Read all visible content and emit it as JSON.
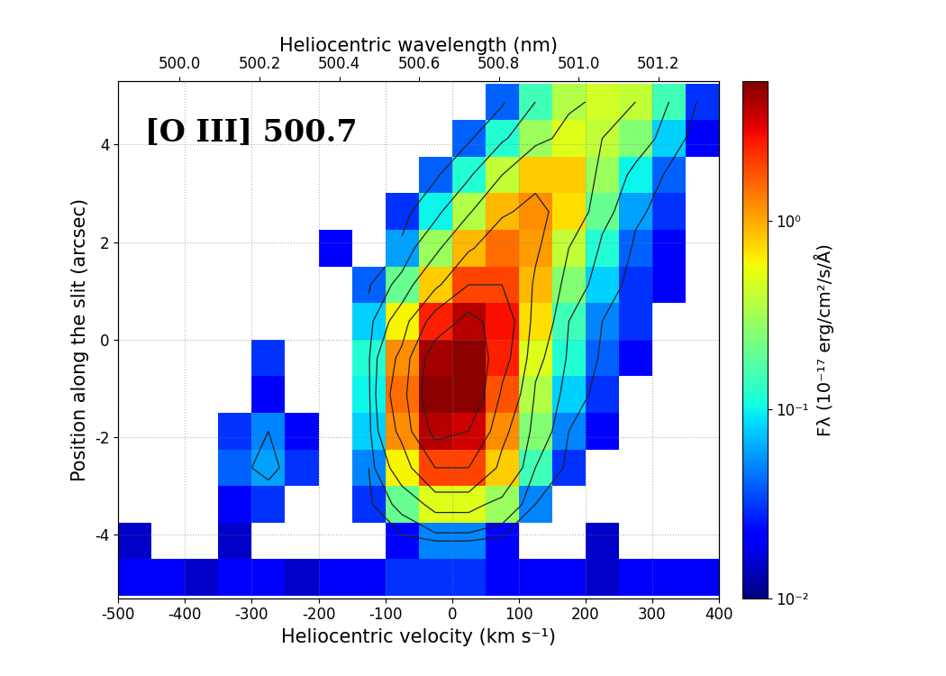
{
  "chart_data": {
    "type": "heatmap",
    "annotation": "[O III] 500.7",
    "x_label": "Heliocentric velocity (km s⁻¹)",
    "y_label": "Position along the slit (arcsec)",
    "x2_label": "Heliocentric wavelength (nm)",
    "colorbar_label": "Fλ (10⁻¹⁷ erg/cm²/s/Å)",
    "xlim": [
      -500,
      400
    ],
    "xticks": [
      -500,
      -400,
      -300,
      -200,
      -100,
      0,
      100,
      200,
      300,
      400
    ],
    "ylim": [
      -5.3,
      5.3
    ],
    "yticks": [
      -4,
      -2,
      0,
      2,
      4
    ],
    "x2lim": [
      499.846,
      501.352
    ],
    "x2ticks": [
      500.0,
      500.2,
      500.4,
      500.6,
      500.8,
      501.0,
      501.2
    ],
    "grid": true,
    "log": true,
    "color": "jet",
    "x_edges": [
      -500,
      -450,
      -400,
      -350,
      -300,
      -250,
      -200,
      -150,
      -100,
      -50,
      0,
      50,
      100,
      150,
      200,
      250,
      300,
      350,
      400
    ],
    "y_edges": [
      -5.25,
      -4.5,
      -3.75,
      -3.0,
      -2.25,
      -1.5,
      -0.75,
      0.0,
      0.75,
      1.5,
      2.25,
      3.0,
      3.75,
      4.5,
      5.25
    ],
    "cells": [
      [
        0.02,
        0.02,
        0.015,
        0.02,
        0.02,
        0.015,
        0.02,
        0.02,
        0.03,
        0.03,
        0.03,
        0.02,
        0.02,
        0.02,
        0.015,
        0.02,
        0.02,
        0.02
      ],
      [
        0.015,
        null,
        null,
        0.015,
        null,
        null,
        null,
        null,
        0.02,
        0.05,
        0.05,
        0.02,
        null,
        null,
        0.015,
        null,
        null,
        null
      ],
      [
        null,
        null,
        null,
        0.02,
        0.03,
        null,
        null,
        0.03,
        0.2,
        0.5,
        0.5,
        0.3,
        0.05,
        null,
        null,
        null,
        null,
        null
      ],
      [
        null,
        null,
        null,
        0.04,
        0.06,
        0.03,
        null,
        0.05,
        0.6,
        2.0,
        2.0,
        0.8,
        0.15,
        0.03,
        null,
        null,
        null,
        null
      ],
      [
        null,
        null,
        null,
        0.03,
        0.05,
        0.02,
        null,
        0.08,
        1.2,
        4.0,
        3.5,
        1.2,
        0.25,
        0.05,
        0.02,
        null,
        null,
        null
      ],
      [
        null,
        null,
        null,
        null,
        0.02,
        null,
        null,
        0.1,
        1.5,
        5.0,
        5.0,
        1.8,
        0.35,
        0.08,
        0.03,
        null,
        null,
        null
      ],
      [
        null,
        null,
        null,
        null,
        0.03,
        null,
        null,
        0.12,
        1.2,
        4.5,
        5.0,
        2.5,
        0.5,
        0.12,
        0.04,
        0.02,
        null,
        null
      ],
      [
        null,
        null,
        null,
        null,
        null,
        null,
        null,
        0.08,
        0.6,
        2.5,
        4.0,
        2.8,
        0.7,
        0.15,
        0.05,
        0.03,
        null,
        null
      ],
      [
        null,
        null,
        null,
        null,
        null,
        null,
        null,
        0.04,
        0.2,
        0.8,
        2.0,
        2.0,
        0.9,
        0.25,
        0.08,
        0.03,
        0.02,
        null
      ],
      [
        null,
        null,
        null,
        null,
        null,
        null,
        0.02,
        null,
        0.06,
        0.3,
        0.9,
        1.5,
        1.1,
        0.4,
        0.12,
        0.04,
        0.02,
        null
      ],
      [
        null,
        null,
        null,
        null,
        null,
        null,
        null,
        null,
        0.03,
        0.1,
        0.35,
        0.9,
        1.2,
        0.7,
        0.2,
        0.06,
        0.03,
        null
      ],
      [
        null,
        null,
        null,
        null,
        null,
        null,
        null,
        null,
        null,
        0.04,
        0.12,
        0.4,
        0.8,
        0.8,
        0.3,
        0.1,
        0.04,
        null
      ],
      [
        null,
        null,
        null,
        null,
        null,
        null,
        null,
        null,
        null,
        null,
        0.04,
        0.12,
        0.3,
        0.5,
        0.4,
        0.25,
        0.08,
        0.02
      ],
      [
        null,
        null,
        null,
        null,
        null,
        null,
        null,
        null,
        null,
        null,
        null,
        0.04,
        0.15,
        0.35,
        0.45,
        0.4,
        0.15,
        0.03
      ]
    ],
    "contour_levels": [
      0.05,
      0.15,
      0.4,
      1.0,
      2.0,
      3.5
    ],
    "colorbar_range": [
      0.01,
      5.5
    ],
    "colorbar_ticks": [
      {
        "value": 0.01,
        "label": "10⁻²"
      },
      {
        "value": 0.1,
        "label": "10⁻¹"
      },
      {
        "value": 1,
        "label": "10⁰"
      }
    ]
  }
}
